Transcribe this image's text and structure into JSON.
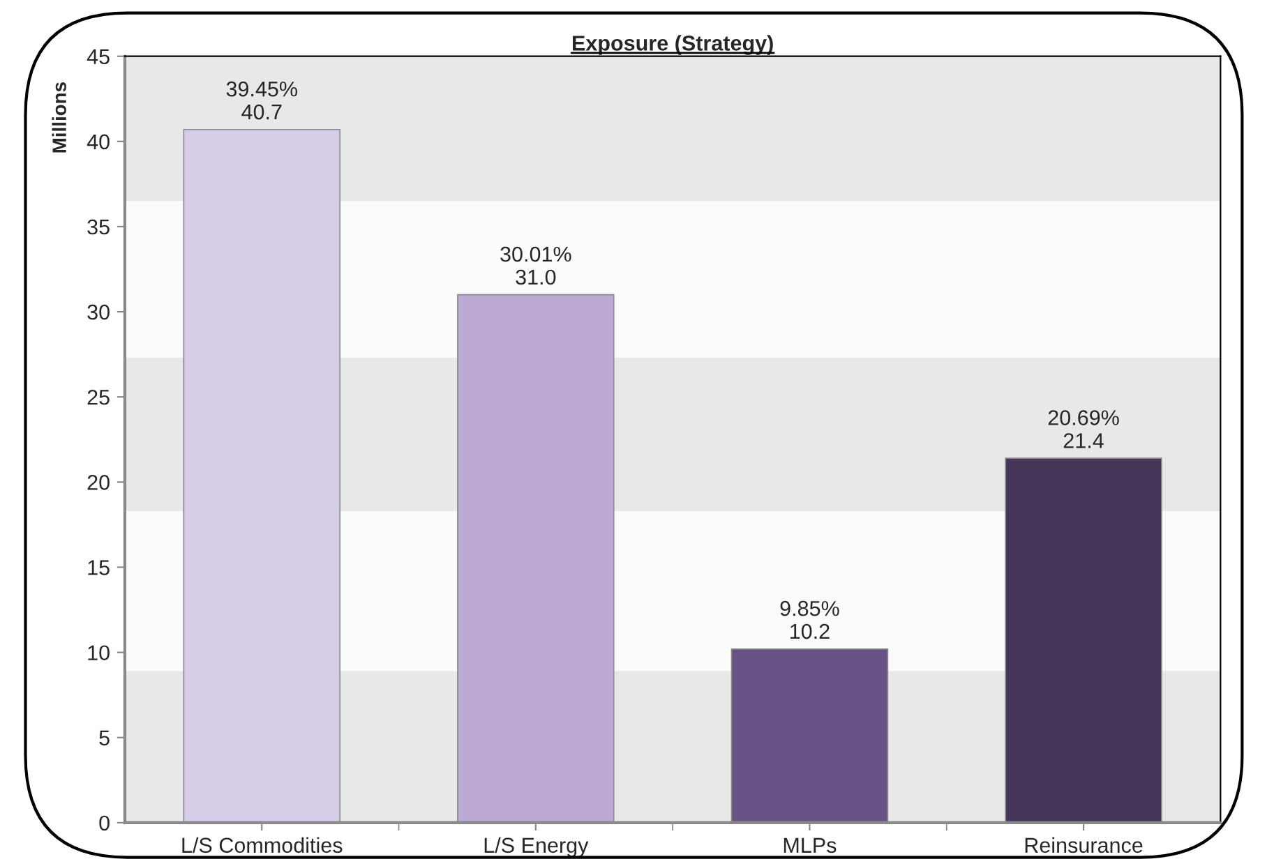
{
  "chart_data": {
    "type": "bar",
    "title": "Exposure (Strategy)",
    "ylabel": "Millions",
    "categories": [
      "L/S Commodities",
      "L/S Energy",
      "MLPs",
      "Reinsurance"
    ],
    "values": [
      40.7,
      31.0,
      10.2,
      21.4
    ],
    "colors": [
      "#d8cde8",
      "#bcaad4",
      "#685286",
      "#46375a"
    ],
    "value_labels": [
      "39.45%\n40.7",
      "30.01%\n31.0",
      "9.85%\n10.2",
      "20.69%\n21.4"
    ],
    "ylim": [
      0,
      45
    ],
    "yticks": [
      0,
      5,
      10,
      15,
      20,
      25,
      30,
      35,
      40,
      45
    ],
    "bands": [
      {
        "axis": "y",
        "from": 0,
        "to": 8.9,
        "color": "#e8e8e8"
      },
      {
        "axis": "y",
        "from": 18.3,
        "to": 27.3,
        "color": "#e8e8e8"
      },
      {
        "axis": "y",
        "from": 36.5,
        "to": 45,
        "color": "#e8e8e8"
      }
    ],
    "grid": false,
    "legend": false
  }
}
